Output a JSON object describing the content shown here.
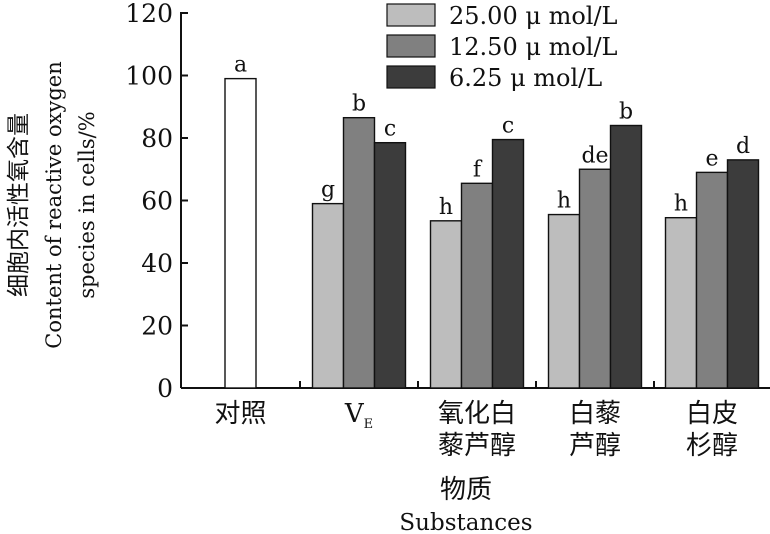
{
  "chart_data": {
    "type": "bar",
    "ylabel_cn": "细胞内活性氧含量",
    "ylabel_en_line1": "Content of reactive oxygen",
    "ylabel_en_line2": "species in cells/%",
    "xlabel_cn": "物质",
    "xlabel_en": "Substances",
    "ylim": [
      0,
      120
    ],
    "yticks": [
      0,
      20,
      40,
      60,
      80,
      100,
      120
    ],
    "grid": false,
    "legend_position": "top",
    "categories": [
      {
        "lines": [
          "对照"
        ]
      },
      {
        "lines": [
          "V"
        ],
        "sub": "E"
      },
      {
        "lines": [
          "氧化白",
          "藜芦醇"
        ]
      },
      {
        "lines": [
          "白藜",
          "芦醇"
        ]
      },
      {
        "lines": [
          "白皮",
          "杉醇"
        ]
      }
    ],
    "control": {
      "value": 99,
      "label": "a",
      "color": "#ffffff"
    },
    "series": [
      {
        "name": "25.00 μ mol/L",
        "color": "#bdbdbd",
        "values": [
          null,
          59,
          53.5,
          55.5,
          54.5
        ],
        "labels": [
          "",
          "g",
          "h",
          "h",
          "h"
        ]
      },
      {
        "name": "12.50 μ mol/L",
        "color": "#808080",
        "values": [
          null,
          86.5,
          65.5,
          70,
          69
        ],
        "labels": [
          "",
          "b",
          "f",
          "de",
          "e"
        ]
      },
      {
        "name": "6.25 μ mol/L",
        "color": "#3c3c3c",
        "values": [
          null,
          78.5,
          79.5,
          84,
          73
        ],
        "labels": [
          "",
          "c",
          "c",
          "b",
          "d"
        ]
      }
    ]
  }
}
